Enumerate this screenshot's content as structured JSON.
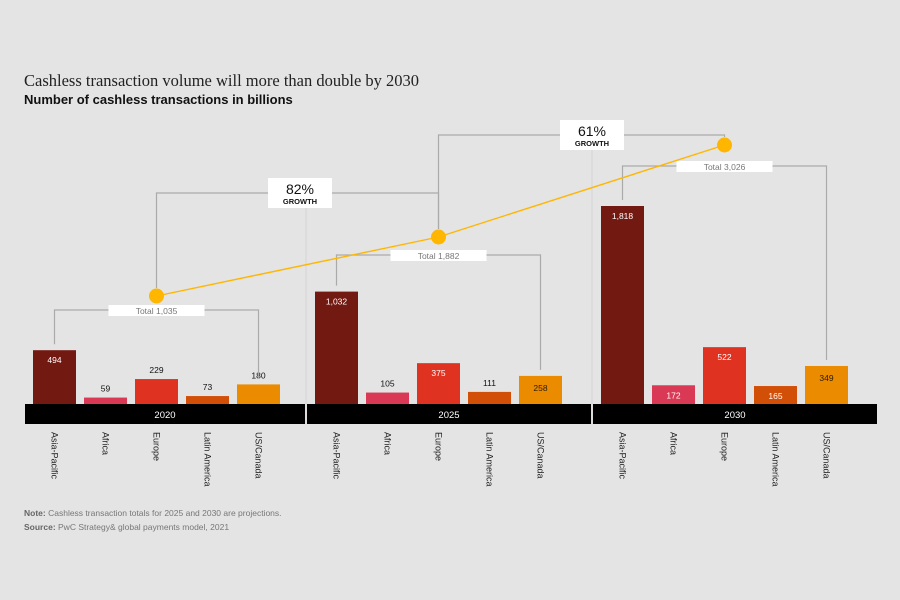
{
  "title": "Cashless transaction volume will more than double by 2030",
  "subtitle": "Number of cashless transactions in billions",
  "note_label": "Note:",
  "note_text": " Cashless transaction totals for 2025 and 2030 are projections.",
  "source_label": "Source:",
  "source_text": " PwC Strategy& global payments model, 2021",
  "chart_data": {
    "type": "bar",
    "title": "Cashless transaction volume will more than double by 2030",
    "subtitle": "Number of cashless transactions in billions",
    "xlabel": "",
    "ylabel": "Number of cashless transactions in billions",
    "ylim": [
      0,
      1900
    ],
    "grid": false,
    "categories": [
      "Asia-Pacific",
      "Africa",
      "Europe",
      "Latin America",
      "US/Canada"
    ],
    "category_colors": [
      "#721911",
      "#d93954",
      "#e03221",
      "#d24f08",
      "#eb8c00"
    ],
    "groups": [
      {
        "year": "2020",
        "values": [
          494,
          59,
          229,
          73,
          180
        ],
        "total_label": "Total 1,035",
        "total": 1035
      },
      {
        "year": "2025",
        "values": [
          1032,
          105,
          375,
          111,
          258
        ],
        "total_label": "Total 1,882",
        "total": 1882
      },
      {
        "year": "2030",
        "values": [
          1818,
          172,
          522,
          165,
          349
        ],
        "total_label": "Total 3,026",
        "total": 3026
      }
    ],
    "value_labels": [
      [
        "494",
        "59",
        "229",
        "73",
        "180"
      ],
      [
        "1,032",
        "105",
        "375",
        "111",
        "258"
      ],
      [
        "1,818",
        "172",
        "522",
        "165",
        "349"
      ]
    ],
    "total_line": {
      "color": "#ffb600",
      "values": [
        1035,
        1882,
        3026
      ]
    },
    "growth_annotations": [
      {
        "from": "2020",
        "to": "2025",
        "value": "82%",
        "label": "GROWTH"
      },
      {
        "from": "2025",
        "to": "2030",
        "value": "61%",
        "label": "GROWTH"
      }
    ]
  }
}
